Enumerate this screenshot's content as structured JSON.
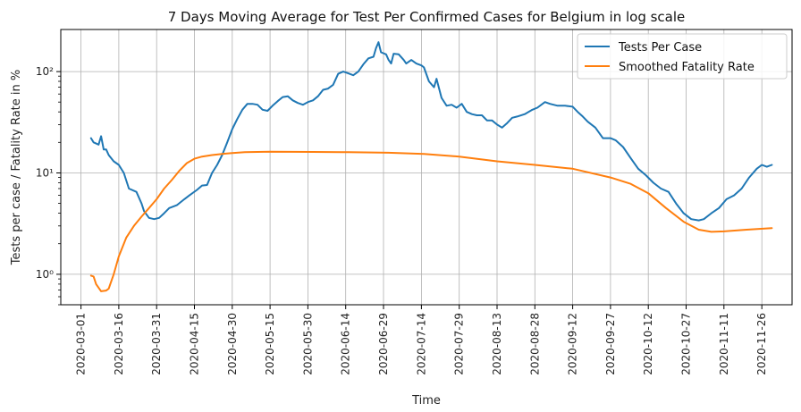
{
  "chart_data": {
    "type": "line",
    "title": "7 Days Moving Average for Test Per Confirmed Cases for Belgium in log scale",
    "xlabel": "Time",
    "ylabel": "Tests per case / Fatality Rate in %",
    "y_scale": "log",
    "ylim": [
      0.5,
      260
    ],
    "xlim": [
      "2020-02-22",
      "2020-12-08"
    ],
    "grid": true,
    "legend_position": "top-right",
    "x_ticks": [
      "2020-03-01",
      "2020-03-16",
      "2020-03-31",
      "2020-04-15",
      "2020-04-30",
      "2020-05-15",
      "2020-05-30",
      "2020-06-14",
      "2020-06-29",
      "2020-07-14",
      "2020-07-29",
      "2020-08-13",
      "2020-08-28",
      "2020-09-12",
      "2020-09-27",
      "2020-10-12",
      "2020-10-27",
      "2020-11-11",
      "2020-11-26"
    ],
    "y_ticks": [
      {
        "value": 1,
        "label": "10⁰"
      },
      {
        "value": 10,
        "label": "10¹"
      },
      {
        "value": 100,
        "label": "10²"
      }
    ],
    "series": [
      {
        "name": "Tests Per Case",
        "color": "#1f77b4",
        "points": [
          [
            "2020-03-05",
            22
          ],
          [
            "2020-03-06",
            20
          ],
          [
            "2020-03-08",
            19
          ],
          [
            "2020-03-09",
            23
          ],
          [
            "2020-03-10",
            17
          ],
          [
            "2020-03-11",
            17
          ],
          [
            "2020-03-12",
            15
          ],
          [
            "2020-03-14",
            13
          ],
          [
            "2020-03-16",
            12
          ],
          [
            "2020-03-18",
            10
          ],
          [
            "2020-03-20",
            7
          ],
          [
            "2020-03-23",
            6.5
          ],
          [
            "2020-03-25",
            5
          ],
          [
            "2020-03-26",
            4.2
          ],
          [
            "2020-03-28",
            3.6
          ],
          [
            "2020-03-30",
            3.5
          ],
          [
            "2020-04-01",
            3.6
          ],
          [
            "2020-04-03",
            4.0
          ],
          [
            "2020-04-05",
            4.5
          ],
          [
            "2020-04-08",
            4.8
          ],
          [
            "2020-04-11",
            5.5
          ],
          [
            "2020-04-13",
            6.0
          ],
          [
            "2020-04-16",
            6.8
          ],
          [
            "2020-04-18",
            7.5
          ],
          [
            "2020-04-20",
            7.6
          ],
          [
            "2020-04-22",
            10
          ],
          [
            "2020-04-24",
            12
          ],
          [
            "2020-04-26",
            15
          ],
          [
            "2020-04-28",
            20
          ],
          [
            "2020-04-30",
            27
          ],
          [
            "2020-05-02",
            34
          ],
          [
            "2020-05-04",
            42
          ],
          [
            "2020-05-06",
            48
          ],
          [
            "2020-05-08",
            48
          ],
          [
            "2020-05-10",
            47
          ],
          [
            "2020-05-12",
            42
          ],
          [
            "2020-05-14",
            41
          ],
          [
            "2020-05-16",
            46
          ],
          [
            "2020-05-18",
            51
          ],
          [
            "2020-05-20",
            56
          ],
          [
            "2020-05-22",
            57
          ],
          [
            "2020-05-24",
            52
          ],
          [
            "2020-05-26",
            49
          ],
          [
            "2020-05-28",
            47
          ],
          [
            "2020-05-30",
            50
          ],
          [
            "2020-06-01",
            52
          ],
          [
            "2020-06-03",
            57
          ],
          [
            "2020-06-05",
            66
          ],
          [
            "2020-06-07",
            68
          ],
          [
            "2020-06-09",
            74
          ],
          [
            "2020-06-11",
            95
          ],
          [
            "2020-06-13",
            100
          ],
          [
            "2020-06-15",
            96
          ],
          [
            "2020-06-17",
            92
          ],
          [
            "2020-06-19",
            100
          ],
          [
            "2020-06-21",
            118
          ],
          [
            "2020-06-23",
            135
          ],
          [
            "2020-06-25",
            140
          ],
          [
            "2020-06-26",
            170
          ],
          [
            "2020-06-27",
            195
          ],
          [
            "2020-06-28",
            155
          ],
          [
            "2020-06-30",
            148
          ],
          [
            "2020-07-01",
            130
          ],
          [
            "2020-07-02",
            120
          ],
          [
            "2020-07-03",
            150
          ],
          [
            "2020-07-05",
            148
          ],
          [
            "2020-07-07",
            130
          ],
          [
            "2020-07-08",
            120
          ],
          [
            "2020-07-10",
            130
          ],
          [
            "2020-07-12",
            120
          ],
          [
            "2020-07-14",
            115
          ],
          [
            "2020-07-15",
            110
          ],
          [
            "2020-07-17",
            80
          ],
          [
            "2020-07-19",
            70
          ],
          [
            "2020-07-20",
            85
          ],
          [
            "2020-07-22",
            55
          ],
          [
            "2020-07-24",
            46
          ],
          [
            "2020-07-26",
            47
          ],
          [
            "2020-07-28",
            44
          ],
          [
            "2020-07-30",
            48
          ],
          [
            "2020-08-01",
            40
          ],
          [
            "2020-08-03",
            38
          ],
          [
            "2020-08-05",
            37
          ],
          [
            "2020-08-07",
            37
          ],
          [
            "2020-08-09",
            33
          ],
          [
            "2020-08-11",
            33
          ],
          [
            "2020-08-13",
            30
          ],
          [
            "2020-08-15",
            28
          ],
          [
            "2020-08-17",
            31
          ],
          [
            "2020-08-19",
            35
          ],
          [
            "2020-08-21",
            36
          ],
          [
            "2020-08-24",
            38
          ],
          [
            "2020-08-27",
            42
          ],
          [
            "2020-08-29",
            44
          ],
          [
            "2020-09-01",
            50
          ],
          [
            "2020-09-03",
            48
          ],
          [
            "2020-09-06",
            46
          ],
          [
            "2020-09-09",
            46
          ],
          [
            "2020-09-12",
            45
          ],
          [
            "2020-09-14",
            40
          ],
          [
            "2020-09-16",
            36
          ],
          [
            "2020-09-18",
            32
          ],
          [
            "2020-09-21",
            28
          ],
          [
            "2020-09-24",
            22
          ],
          [
            "2020-09-27",
            22
          ],
          [
            "2020-09-29",
            21
          ],
          [
            "2020-10-02",
            18
          ],
          [
            "2020-10-05",
            14
          ],
          [
            "2020-10-08",
            11
          ],
          [
            "2020-10-11",
            9.5
          ],
          [
            "2020-10-14",
            8
          ],
          [
            "2020-10-17",
            7
          ],
          [
            "2020-10-20",
            6.5
          ],
          [
            "2020-10-23",
            5.0
          ],
          [
            "2020-10-26",
            4.0
          ],
          [
            "2020-10-29",
            3.5
          ],
          [
            "2020-11-01",
            3.4
          ],
          [
            "2020-11-03",
            3.5
          ],
          [
            "2020-11-06",
            4.0
          ],
          [
            "2020-11-09",
            4.5
          ],
          [
            "2020-11-12",
            5.5
          ],
          [
            "2020-11-15",
            6.0
          ],
          [
            "2020-11-18",
            7.0
          ],
          [
            "2020-11-21",
            9.0
          ],
          [
            "2020-11-24",
            11
          ],
          [
            "2020-11-26",
            12
          ],
          [
            "2020-11-28",
            11.5
          ],
          [
            "2020-11-30",
            12
          ]
        ]
      },
      {
        "name": "Smoothed Fatality Rate",
        "color": "#ff7f0e",
        "points": [
          [
            "2020-03-05",
            0.97
          ],
          [
            "2020-03-06",
            0.95
          ],
          [
            "2020-03-07",
            0.8
          ],
          [
            "2020-03-09",
            0.68
          ],
          [
            "2020-03-11",
            0.69
          ],
          [
            "2020-03-12",
            0.72
          ],
          [
            "2020-03-14",
            1.0
          ],
          [
            "2020-03-16",
            1.5
          ],
          [
            "2020-03-19",
            2.3
          ],
          [
            "2020-03-22",
            3.0
          ],
          [
            "2020-03-25",
            3.7
          ],
          [
            "2020-03-28",
            4.5
          ],
          [
            "2020-03-31",
            5.5
          ],
          [
            "2020-04-03",
            7.0
          ],
          [
            "2020-04-06",
            8.5
          ],
          [
            "2020-04-09",
            10.5
          ],
          [
            "2020-04-12",
            12.5
          ],
          [
            "2020-04-15",
            13.8
          ],
          [
            "2020-04-18",
            14.5
          ],
          [
            "2020-04-22",
            15.0
          ],
          [
            "2020-04-26",
            15.4
          ],
          [
            "2020-04-30",
            15.7
          ],
          [
            "2020-05-05",
            16.0
          ],
          [
            "2020-05-15",
            16.2
          ],
          [
            "2020-06-01",
            16.1
          ],
          [
            "2020-06-15",
            16.0
          ],
          [
            "2020-07-01",
            15.8
          ],
          [
            "2020-07-15",
            15.4
          ],
          [
            "2020-07-29",
            14.5
          ],
          [
            "2020-08-13",
            13.0
          ],
          [
            "2020-08-28",
            12.0
          ],
          [
            "2020-09-12",
            11.0
          ],
          [
            "2020-09-27",
            9.0
          ],
          [
            "2020-10-05",
            7.8
          ],
          [
            "2020-10-12",
            6.3
          ],
          [
            "2020-10-19",
            4.5
          ],
          [
            "2020-10-26",
            3.3
          ],
          [
            "2020-11-01",
            2.75
          ],
          [
            "2020-11-06",
            2.62
          ],
          [
            "2020-11-11",
            2.65
          ],
          [
            "2020-11-20",
            2.75
          ],
          [
            "2020-11-30",
            2.85
          ]
        ]
      }
    ]
  }
}
